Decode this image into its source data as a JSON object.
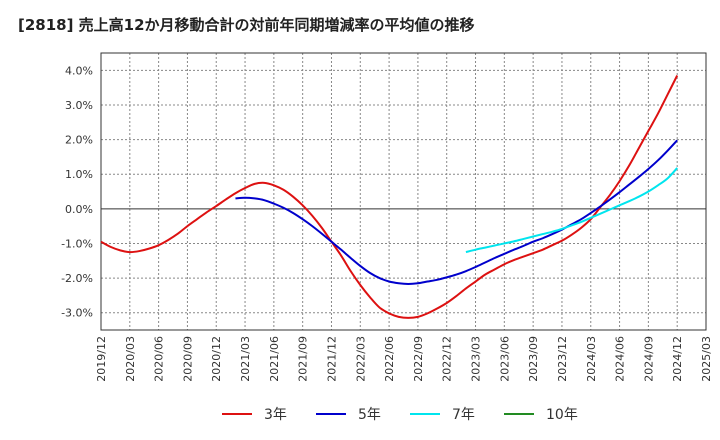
{
  "chart_data": {
    "type": "line",
    "title": "[2818]  売上高12か月移動合計の対前年同期増減率の平均値の推移",
    "xlabel": "",
    "ylabel": "",
    "ylim": [
      -3.5,
      4.5
    ],
    "x_ticks": [
      "2019/12",
      "2020/03",
      "2020/06",
      "2020/09",
      "2020/12",
      "2021/03",
      "2021/06",
      "2021/09",
      "2021/12",
      "2022/03",
      "2022/06",
      "2022/09",
      "2022/12",
      "2023/03",
      "2023/06",
      "2023/09",
      "2023/12",
      "2024/03",
      "2024/06",
      "2024/09",
      "2024/12",
      "2025/03"
    ],
    "y_ticks": [
      "4.0%",
      "3.0%",
      "2.0%",
      "1.0%",
      "0.0%",
      "-1.0%",
      "-2.0%",
      "-3.0%"
    ],
    "y_tick_values": [
      4,
      3,
      2,
      1,
      0,
      -1,
      -2,
      -3
    ],
    "grid": true,
    "legend_position": "bottom",
    "series": [
      {
        "name": "3年",
        "color": "#dd1111",
        "x": [
          "2019/12",
          "2020/01",
          "2020/02",
          "2020/03",
          "2020/04",
          "2020/05",
          "2020/06",
          "2020/07",
          "2020/08",
          "2020/09",
          "2020/10",
          "2020/11",
          "2020/12",
          "2021/01",
          "2021/02",
          "2021/03",
          "2021/04",
          "2021/05",
          "2021/06",
          "2021/07",
          "2021/08",
          "2021/09",
          "2021/10",
          "2021/11",
          "2021/12",
          "2022/01",
          "2022/02",
          "2022/03",
          "2022/04",
          "2022/05",
          "2022/06",
          "2022/07",
          "2022/08",
          "2022/09",
          "2022/10",
          "2022/11",
          "2022/12",
          "2023/01",
          "2023/02",
          "2023/03",
          "2023/04",
          "2023/05",
          "2023/06",
          "2023/07",
          "2023/08",
          "2023/09",
          "2023/10",
          "2023/11",
          "2023/12",
          "2024/01",
          "2024/02",
          "2024/03",
          "2024/04",
          "2024/05",
          "2024/06",
          "2024/07",
          "2024/08",
          "2024/09",
          "2024/10",
          "2024/11",
          "2024/12"
        ],
        "values": [
          -0.95,
          -1.1,
          -1.2,
          -1.25,
          -1.22,
          -1.15,
          -1.05,
          -0.9,
          -0.72,
          -0.5,
          -0.3,
          -0.1,
          0.08,
          0.27,
          0.45,
          0.6,
          0.72,
          0.75,
          0.68,
          0.55,
          0.35,
          0.1,
          -0.2,
          -0.55,
          -0.95,
          -1.35,
          -1.8,
          -2.2,
          -2.55,
          -2.85,
          -3.02,
          -3.12,
          -3.15,
          -3.12,
          -3.02,
          -2.88,
          -2.72,
          -2.52,
          -2.3,
          -2.1,
          -1.9,
          -1.75,
          -1.6,
          -1.48,
          -1.38,
          -1.28,
          -1.18,
          -1.05,
          -0.92,
          -0.75,
          -0.55,
          -0.3,
          0.05,
          0.4,
          0.8,
          1.25,
          1.75,
          2.25,
          2.75,
          3.3,
          3.85
        ]
      },
      {
        "name": "5年",
        "color": "#0000cc",
        "x": [
          "2021/02",
          "2021/03",
          "2021/04",
          "2021/05",
          "2021/06",
          "2021/07",
          "2021/08",
          "2021/09",
          "2021/10",
          "2021/11",
          "2021/12",
          "2022/01",
          "2022/02",
          "2022/03",
          "2022/04",
          "2022/05",
          "2022/06",
          "2022/07",
          "2022/08",
          "2022/09",
          "2022/10",
          "2022/11",
          "2022/12",
          "2023/01",
          "2023/02",
          "2023/03",
          "2023/04",
          "2023/05",
          "2023/06",
          "2023/07",
          "2023/08",
          "2023/09",
          "2023/10",
          "2023/11",
          "2023/12",
          "2024/01",
          "2024/02",
          "2024/03",
          "2024/04",
          "2024/05",
          "2024/06",
          "2024/07",
          "2024/08",
          "2024/09",
          "2024/10",
          "2024/11",
          "2024/12"
        ],
        "values": [
          0.3,
          0.32,
          0.3,
          0.25,
          0.15,
          0.03,
          -0.12,
          -0.3,
          -0.5,
          -0.72,
          -0.95,
          -1.18,
          -1.42,
          -1.65,
          -1.85,
          -2.0,
          -2.1,
          -2.15,
          -2.17,
          -2.15,
          -2.1,
          -2.05,
          -1.98,
          -1.9,
          -1.8,
          -1.68,
          -1.55,
          -1.42,
          -1.3,
          -1.18,
          -1.07,
          -0.95,
          -0.85,
          -0.73,
          -0.6,
          -0.45,
          -0.3,
          -0.12,
          0.07,
          0.27,
          0.48,
          0.7,
          0.92,
          1.15,
          1.4,
          1.68,
          1.98
        ]
      },
      {
        "name": "7年",
        "color": "#00e5ee",
        "x": [
          "2023/02",
          "2023/03",
          "2023/04",
          "2023/05",
          "2023/06",
          "2023/07",
          "2023/08",
          "2023/09",
          "2023/10",
          "2023/11",
          "2023/12",
          "2024/01",
          "2024/02",
          "2024/03",
          "2024/04",
          "2024/05",
          "2024/06",
          "2024/07",
          "2024/08",
          "2024/09",
          "2024/10",
          "2024/11",
          "2024/12"
        ],
        "values": [
          -1.25,
          -1.18,
          -1.12,
          -1.06,
          -1.0,
          -0.94,
          -0.87,
          -0.8,
          -0.73,
          -0.66,
          -0.58,
          -0.48,
          -0.38,
          -0.26,
          -0.14,
          -0.02,
          0.1,
          0.22,
          0.35,
          0.5,
          0.68,
          0.88,
          1.18
        ]
      },
      {
        "name": "10年",
        "color": "#228b22",
        "x": [],
        "values": []
      }
    ]
  }
}
